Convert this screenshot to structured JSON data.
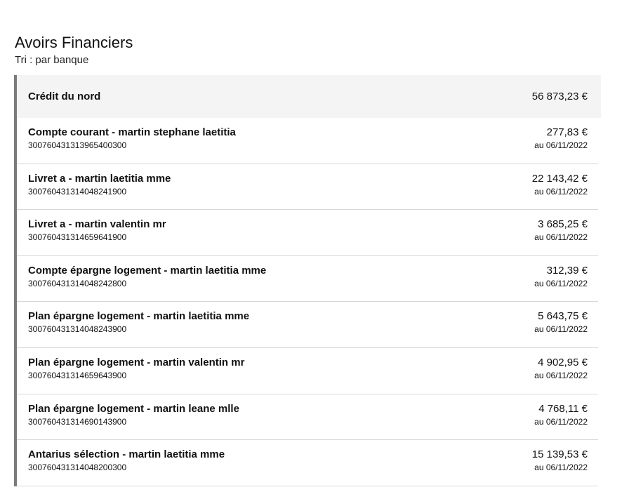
{
  "title": "Avoirs Financiers",
  "sort_label": "Tri : par banque",
  "bank": {
    "name": "Crédit du nord",
    "total": "56 873,23 €"
  },
  "accounts": [
    {
      "label": "Compte courant - martin stephane laetitia",
      "number": "30076043131396540030​0",
      "amount": "277,83 €",
      "date": "au 06/11/2022"
    },
    {
      "label": "Livret a - martin laetitia mme",
      "number": "30076043131404824190​0",
      "amount": "22 143,42 €",
      "date": "au 06/11/2022"
    },
    {
      "label": "Livret a - martin valentin mr",
      "number": "300760431314659641900",
      "amount": "3 685,25 €",
      "date": "au 06/11/2022"
    },
    {
      "label": "Compte épargne logement - martin laetitia mme",
      "number": "300760431314048242800",
      "amount": "312,39 €",
      "date": "au 06/11/2022"
    },
    {
      "label": "Plan épargne logement - martin laetitia mme",
      "number": "300760431314048243900",
      "amount": "5 643,75 €",
      "date": "au 06/11/2022"
    },
    {
      "label": "Plan épargne logement - martin valentin mr",
      "number": "300760431314659643900",
      "amount": "4 902,95 €",
      "date": "au 06/11/2022"
    },
    {
      "label": "Plan épargne logement - martin leane mlle",
      "number": "300760431314690143900",
      "amount": "4 768,11 €",
      "date": "au 06/11/2022"
    },
    {
      "label": "Antarius sélection - martin laetitia mme",
      "number": "300760431314048200300",
      "amount": "15 139,53 €",
      "date": "au 06/11/2022"
    }
  ]
}
